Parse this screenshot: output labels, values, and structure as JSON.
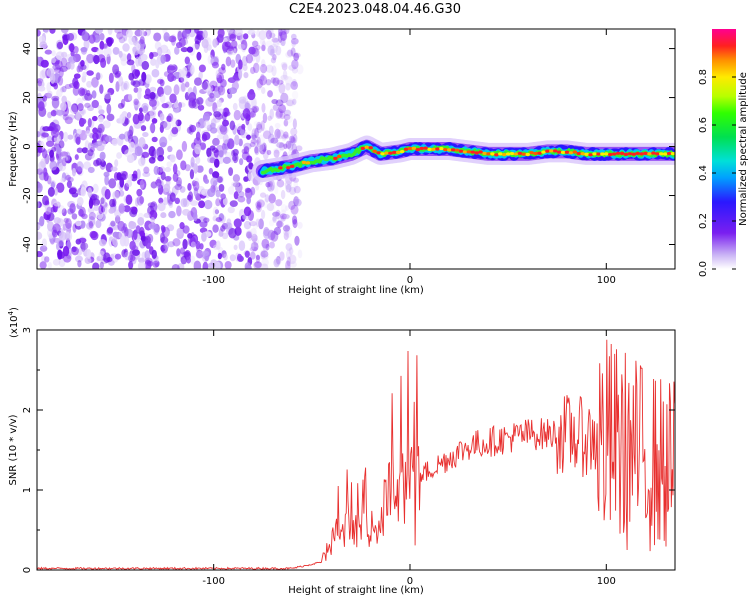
{
  "title": "C2E4.2023.048.04.46.G30",
  "chart_data": [
    {
      "type": "heatmap",
      "xlabel": "Height of straight line (km)",
      "ylabel": "Frequency (Hz)",
      "xlim": [
        -190,
        135
      ],
      "ylim": [
        -50,
        48
      ],
      "xticks": [
        -100,
        0,
        100
      ],
      "yticks": [
        -40,
        -20,
        0,
        20,
        40
      ],
      "xtick_labels": [
        "-100",
        "0",
        "100"
      ],
      "ytick_labels": [
        "-40",
        "-20",
        "0",
        "20",
        "40"
      ],
      "colorbar": {
        "label": "Normalized spectral amplitude",
        "range": [
          0,
          1
        ],
        "ticks": [
          0.0,
          0.2,
          0.4,
          0.6,
          0.8
        ],
        "tick_labels": [
          "0.0",
          "0.2",
          "0.4",
          "0.6",
          "0.8"
        ]
      },
      "noise_region": {
        "x_range": [
          -190,
          -60
        ],
        "amplitude": 0.2
      },
      "echo_trace": {
        "x": [
          -75,
          -60,
          -50,
          -40,
          -30,
          -22,
          -15,
          -5,
          0,
          10,
          20,
          30,
          40,
          50,
          60,
          70,
          80,
          90,
          100,
          110,
          120,
          135
        ],
        "y": [
          -10,
          -8,
          -6,
          -5,
          -3,
          0,
          -3,
          -2,
          -1,
          -1,
          -1,
          -2,
          -3,
          -3,
          -3,
          -2,
          -2,
          -3,
          -3,
          -3,
          -3,
          -3
        ]
      }
    },
    {
      "type": "line",
      "xlabel": "Height of straight line (km)",
      "ylabel": "SNR (10 * v/v)",
      "y_multiplier": "(x10^4)",
      "y_multiplier_base": "(x10",
      "y_multiplier_exp": "4",
      "y_multiplier_close": ")",
      "xlim": [
        -190,
        135
      ],
      "ylim": [
        0,
        3
      ],
      "xticks": [
        -100,
        0,
        100
      ],
      "yticks": [
        0,
        1,
        2,
        3
      ],
      "xtick_labels": [
        "-100",
        "0",
        "100"
      ],
      "ytick_labels": [
        "0",
        "1",
        "2",
        "3"
      ],
      "color": "#e8302f",
      "series": [
        {
          "x": [
            -190,
            -60,
            -45,
            -40,
            -35,
            -30,
            -25,
            -20,
            -15,
            -12,
            -10,
            -5,
            0,
            10,
            20,
            30,
            40,
            50,
            60,
            70,
            80,
            90,
            100,
            110,
            120,
            130,
            135
          ],
          "y": [
            0.02,
            0.02,
            0.1,
            0.35,
            0.55,
            0.45,
            0.55,
            0.5,
            0.6,
            0.9,
            1.05,
            1.0,
            1.1,
            1.25,
            1.4,
            1.55,
            1.6,
            1.65,
            1.7,
            1.7,
            1.7,
            1.65,
            1.6,
            1.5,
            1.4,
            1.3,
            1.3
          ]
        }
      ]
    }
  ]
}
